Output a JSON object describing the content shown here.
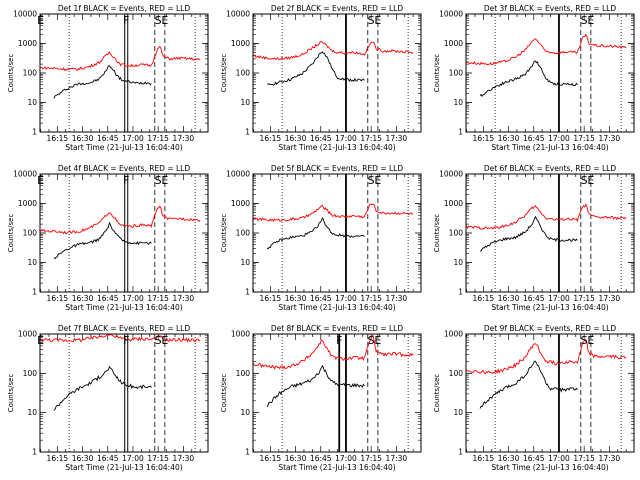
{
  "colors": {
    "events": "#000000",
    "lld": "#ff0000",
    "axes": "#000000",
    "background": "#ffffff"
  },
  "common": {
    "xlabel": "Start Time (21-Jul-13 16:04:40)",
    "ylabel": "Counts/sec",
    "xticks": [
      "16:15",
      "16:30",
      "16:45",
      "17:00",
      "17:15",
      "17:30"
    ],
    "yticks": [
      "1",
      "10",
      "100",
      "1000",
      "10000"
    ]
  },
  "chart_data": [
    {
      "type": "line",
      "title": "Det 1f BLACK = Events, RED = LLD",
      "ylim": [
        1,
        10000
      ],
      "xticks": [
        "16:15",
        "16:30",
        "16:45",
        "17:00",
        "17:15",
        "17:30"
      ],
      "yticks": [
        "1",
        "10",
        "100",
        "1000",
        "10000"
      ],
      "markers": [
        "E",
        "F",
        "S",
        "E"
      ],
      "series": [
        {
          "name": "Events",
          "x": [
            "16:13",
            "16:20",
            "16:27",
            "16:34",
            "16:40",
            "16:44",
            "16:46",
            "16:49",
            "16:52",
            "16:55",
            "16:58",
            "17:02",
            "17:08",
            "17:11"
          ],
          "values": [
            15,
            28,
            42,
            46,
            62,
            120,
            185,
            110,
            66,
            53,
            50,
            45,
            47,
            44
          ]
        },
        {
          "name": "LLD",
          "x": [
            "16:05",
            "16:13",
            "16:20",
            "16:27",
            "16:34",
            "16:40",
            "16:44",
            "16:46",
            "16:49",
            "16:52",
            "16:58",
            "17:05",
            "17:11",
            "17:14",
            "17:16",
            "17:18",
            "17:22",
            "17:28",
            "17:35",
            "17:40"
          ],
          "values": [
            150,
            145,
            135,
            135,
            165,
            230,
            390,
            500,
            330,
            200,
            175,
            190,
            180,
            550,
            800,
            360,
            300,
            320,
            300,
            280
          ]
        }
      ]
    },
    {
      "type": "line",
      "title": "Det 2f BLACK = Events, RED = LLD",
      "ylim": [
        1,
        10000
      ],
      "xticks": [
        "16:15",
        "16:30",
        "16:45",
        "17:00",
        "17:15",
        "17:30"
      ],
      "yticks": [
        "1",
        "10",
        "100",
        "1000",
        "10000"
      ],
      "markers": [
        "S",
        "E"
      ],
      "series": [
        {
          "name": "Events",
          "x": [
            "16:13",
            "16:20",
            "16:27",
            "16:34",
            "16:40",
            "16:44",
            "16:46",
            "16:49",
            "16:52",
            "16:55",
            "17:00",
            "17:06",
            "17:11"
          ],
          "values": [
            38,
            48,
            60,
            95,
            200,
            420,
            560,
            320,
            130,
            70,
            60,
            57,
            56
          ]
        },
        {
          "name": "LLD",
          "x": [
            "16:05",
            "16:13",
            "16:20",
            "16:27",
            "16:34",
            "16:40",
            "16:44",
            "16:46",
            "16:49",
            "16:52",
            "16:58",
            "17:05",
            "17:11",
            "17:14",
            "17:16",
            "17:18",
            "17:22",
            "17:28",
            "17:35",
            "17:40"
          ],
          "values": [
            380,
            320,
            300,
            330,
            420,
            700,
            1000,
            1100,
            800,
            550,
            480,
            500,
            430,
            900,
            1200,
            650,
            560,
            560,
            520,
            500
          ]
        }
      ]
    },
    {
      "type": "line",
      "title": "Det 3f BLACK = Events, RED = LLD",
      "ylim": [
        1,
        10000
      ],
      "xticks": [
        "16:15",
        "16:30",
        "16:45",
        "17:00",
        "17:15",
        "17:30"
      ],
      "yticks": [
        "1",
        "10",
        "100",
        "1000",
        "10000"
      ],
      "markers": [
        "S",
        "E"
      ],
      "series": [
        {
          "name": "Events",
          "x": [
            "16:13",
            "16:20",
            "16:27",
            "16:34",
            "16:40",
            "16:44",
            "16:46",
            "16:49",
            "16:52",
            "16:55",
            "17:00",
            "17:06",
            "17:11"
          ],
          "values": [
            16,
            30,
            46,
            62,
            90,
            180,
            280,
            150,
            70,
            45,
            42,
            42,
            40
          ]
        },
        {
          "name": "LLD",
          "x": [
            "16:05",
            "16:13",
            "16:20",
            "16:27",
            "16:34",
            "16:40",
            "16:44",
            "16:46",
            "16:49",
            "16:52",
            "16:58",
            "17:05",
            "17:11",
            "17:14",
            "17:16",
            "17:18",
            "17:22",
            "17:28",
            "17:35",
            "17:40"
          ],
          "values": [
            230,
            210,
            205,
            240,
            340,
            600,
            1150,
            1500,
            900,
            550,
            480,
            520,
            480,
            1500,
            1900,
            1000,
            850,
            820,
            780,
            720
          ]
        }
      ]
    },
    {
      "type": "line",
      "title": "Det 4f BLACK = Events, RED = LLD",
      "ylim": [
        1,
        10000
      ],
      "xticks": [
        "16:15",
        "16:30",
        "16:45",
        "17:00",
        "17:15",
        "17:30"
      ],
      "yticks": [
        "1",
        "10",
        "100",
        "1000",
        "10000"
      ],
      "markers": [
        "E",
        "F",
        "S",
        "E"
      ],
      "series": [
        {
          "name": "Events",
          "x": [
            "16:13",
            "16:20",
            "16:27",
            "16:34",
            "16:40",
            "16:44",
            "16:46",
            "16:49",
            "16:52",
            "16:55",
            "16:58",
            "17:02",
            "17:08",
            "17:11"
          ],
          "values": [
            14,
            27,
            40,
            46,
            62,
            120,
            200,
            110,
            66,
            52,
            48,
            45,
            47,
            44
          ]
        },
        {
          "name": "LLD",
          "x": [
            "16:05",
            "16:13",
            "16:20",
            "16:27",
            "16:34",
            "16:40",
            "16:44",
            "16:46",
            "16:49",
            "16:52",
            "16:58",
            "17:05",
            "17:11",
            "17:14",
            "17:16",
            "17:18",
            "17:22",
            "17:28",
            "17:35",
            "17:40"
          ],
          "values": [
            120,
            115,
            105,
            110,
            145,
            220,
            400,
            520,
            330,
            190,
            165,
            185,
            175,
            600,
            820,
            360,
            290,
            310,
            290,
            270
          ]
        }
      ]
    },
    {
      "type": "line",
      "title": "Det 5f BLACK = Events, RED = LLD",
      "ylim": [
        1,
        10000
      ],
      "xticks": [
        "16:15",
        "16:30",
        "16:45",
        "17:00",
        "17:15",
        "17:30"
      ],
      "yticks": [
        "1",
        "10",
        "100",
        "1000",
        "10000"
      ],
      "markers": [
        "S",
        "E"
      ],
      "series": [
        {
          "name": "Events",
          "x": [
            "16:13",
            "16:20",
            "16:27",
            "16:34",
            "16:40",
            "16:44",
            "16:46",
            "16:49",
            "16:52",
            "16:55",
            "17:00",
            "17:06",
            "17:11"
          ],
          "values": [
            30,
            55,
            70,
            80,
            110,
            200,
            300,
            150,
            95,
            85,
            80,
            78,
            75
          ]
        },
        {
          "name": "LLD",
          "x": [
            "16:05",
            "16:13",
            "16:20",
            "16:27",
            "16:34",
            "16:40",
            "16:44",
            "16:46",
            "16:49",
            "16:52",
            "16:58",
            "17:05",
            "17:11",
            "17:14",
            "17:16",
            "17:18",
            "17:22",
            "17:28",
            "17:35",
            "17:40"
          ],
          "values": [
            300,
            280,
            270,
            290,
            320,
            450,
            700,
            800,
            560,
            400,
            360,
            380,
            350,
            850,
            1050,
            560,
            470,
            480,
            460,
            440
          ]
        }
      ]
    },
    {
      "type": "line",
      "title": "Det 6f BLACK = Events, RED = LLD",
      "ylim": [
        1,
        10000
      ],
      "xticks": [
        "16:15",
        "16:30",
        "16:45",
        "17:00",
        "17:15",
        "17:30"
      ],
      "yticks": [
        "1",
        "10",
        "100",
        "1000",
        "10000"
      ],
      "markers": [
        "S",
        "E"
      ],
      "series": [
        {
          "name": "Events",
          "x": [
            "16:13",
            "16:20",
            "16:27",
            "16:34",
            "16:40",
            "16:44",
            "16:46",
            "16:49",
            "16:52",
            "16:55",
            "17:00",
            "17:06",
            "17:11"
          ],
          "values": [
            25,
            45,
            62,
            70,
            110,
            200,
            330,
            170,
            85,
            62,
            58,
            58,
            56
          ]
        },
        {
          "name": "LLD",
          "x": [
            "16:05",
            "16:13",
            "16:20",
            "16:27",
            "16:34",
            "16:40",
            "16:44",
            "16:46",
            "16:49",
            "16:52",
            "16:58",
            "17:05",
            "17:11",
            "17:14",
            "17:16",
            "17:18",
            "17:22",
            "17:28",
            "17:35",
            "17:40"
          ],
          "values": [
            160,
            150,
            145,
            165,
            230,
            400,
            700,
            800,
            520,
            330,
            280,
            300,
            280,
            750,
            900,
            420,
            340,
            340,
            320,
            310
          ]
        }
      ]
    },
    {
      "type": "line",
      "title": "Det 7f BLACK = Events, RED = LLD",
      "ylim": [
        1,
        1000
      ],
      "xticks": [
        "16:15",
        "16:30",
        "16:45",
        "17:00",
        "17:15",
        "17:30"
      ],
      "yticks": [
        "1",
        "10",
        "100",
        "1000"
      ],
      "markers": [
        "E",
        "F",
        "S",
        "E"
      ],
      "series": [
        {
          "name": "Events",
          "x": [
            "16:13",
            "16:20",
            "16:27",
            "16:34",
            "16:40",
            "16:44",
            "16:46",
            "16:49",
            "16:52",
            "16:55",
            "16:58",
            "17:02",
            "17:08",
            "17:11"
          ],
          "values": [
            12,
            25,
            40,
            55,
            80,
            110,
            140,
            95,
            65,
            52,
            48,
            44,
            46,
            43
          ]
        },
        {
          "name": "LLD",
          "x": [
            "16:05",
            "16:13",
            "16:20",
            "16:27",
            "16:34",
            "16:40",
            "16:44",
            "16:46",
            "16:49",
            "16:52",
            "16:58",
            "17:05",
            "17:11",
            "17:14",
            "17:16",
            "17:18",
            "17:22",
            "17:28",
            "17:35",
            "17:40"
          ],
          "values": [
            720,
            700,
            690,
            700,
            760,
            850,
            950,
            1000,
            900,
            780,
            720,
            760,
            740,
            800,
            880,
            720,
            700,
            720,
            700,
            690
          ]
        }
      ]
    },
    {
      "type": "line",
      "title": "Det 8f BLACK = Events, RED = LLD",
      "ylim": [
        1,
        1000
      ],
      "xticks": [
        "16:15",
        "16:30",
        "16:45",
        "17:00",
        "17:15",
        "17:30"
      ],
      "yticks": [
        "1",
        "10",
        "100",
        "1000"
      ],
      "markers": [
        "F",
        "S",
        "E"
      ],
      "series": [
        {
          "name": "Events",
          "x": [
            "16:13",
            "16:20",
            "16:27",
            "16:34",
            "16:40",
            "16:44",
            "16:46",
            "16:49",
            "16:52",
            "16:55",
            "17:00",
            "17:06",
            "17:11"
          ],
          "values": [
            15,
            30,
            45,
            55,
            70,
            110,
            150,
            90,
            60,
            52,
            50,
            50,
            48
          ]
        },
        {
          "name": "LLD",
          "x": [
            "16:05",
            "16:13",
            "16:20",
            "16:27",
            "16:34",
            "16:40",
            "16:44",
            "16:46",
            "16:49",
            "16:52",
            "16:58",
            "17:05",
            "17:11",
            "17:14",
            "17:16",
            "17:18",
            "17:22",
            "17:28",
            "17:35",
            "17:40"
          ],
          "values": [
            170,
            150,
            140,
            150,
            200,
            320,
            550,
            700,
            400,
            260,
            230,
            250,
            240,
            650,
            850,
            380,
            300,
            310,
            300,
            290
          ]
        }
      ]
    },
    {
      "type": "line",
      "title": "Det 9f BLACK = Events, RED = LLD",
      "ylim": [
        1,
        1000
      ],
      "xticks": [
        "16:15",
        "16:30",
        "16:45",
        "17:00",
        "17:15",
        "17:30"
      ],
      "yticks": [
        "1",
        "10",
        "100",
        "1000"
      ],
      "markers": [
        "S",
        "E"
      ],
      "series": [
        {
          "name": "Events",
          "x": [
            "16:13",
            "16:20",
            "16:27",
            "16:34",
            "16:40",
            "16:44",
            "16:46",
            "16:49",
            "16:52",
            "16:55",
            "17:00",
            "17:06",
            "17:11"
          ],
          "values": [
            14,
            25,
            40,
            55,
            90,
            160,
            200,
            120,
            60,
            40,
            38,
            40,
            38
          ]
        },
        {
          "name": "LLD",
          "x": [
            "16:05",
            "16:13",
            "16:20",
            "16:27",
            "16:34",
            "16:40",
            "16:44",
            "16:46",
            "16:49",
            "16:52",
            "16:58",
            "17:05",
            "17:11",
            "17:14",
            "17:16",
            "17:18",
            "17:22",
            "17:28",
            "17:35",
            "17:40"
          ],
          "values": [
            120,
            110,
            105,
            120,
            160,
            260,
            480,
            600,
            330,
            210,
            180,
            200,
            190,
            550,
            700,
            320,
            260,
            270,
            260,
            250
          ]
        }
      ]
    }
  ]
}
